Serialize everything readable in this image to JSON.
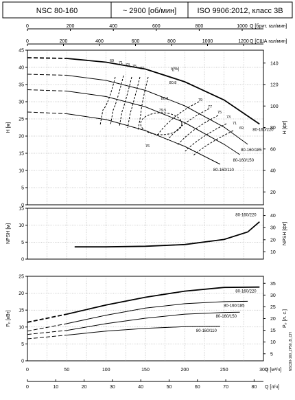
{
  "header": {
    "model": "NSC 80-160",
    "speed": "~ 2900 [об/мин]",
    "standard": "ISO 9906:2012, класс 3B"
  },
  "top_axes": {
    "brit_label": "Q [брит. гал/мин]",
    "brit_ticks": [
      "0",
      "200",
      "400",
      "600",
      "800",
      "1000"
    ],
    "us_label": "Q [США гал/мин]",
    "us_ticks": [
      "0",
      "200",
      "400",
      "600",
      "800",
      "1000",
      "1200"
    ]
  },
  "bottom_axes": {
    "m3h_label": "Q [м³/ч]",
    "m3h_ticks": [
      "0",
      "50",
      "100",
      "150",
      "200",
      "250",
      "300"
    ],
    "ls_label": "Q [л/ч]",
    "ls_ticks": [
      "0",
      "10",
      "20",
      "30",
      "40",
      "50",
      "60",
      "70",
      "80"
    ]
  },
  "side_code": "NSC80-160_2P50_B_CH",
  "chart_data": [
    {
      "type": "line",
      "panel": "head",
      "ylabel": "H [м]",
      "ylabel_right": "H [фт]",
      "xlim": [
        0,
        300
      ],
      "ylim": [
        0,
        45
      ],
      "y_ticks": [
        "0",
        "5",
        "10",
        "15",
        "20",
        "25",
        "30",
        "35",
        "40",
        "45"
      ],
      "y_right_ticks": [
        "20",
        "40",
        "60",
        "80",
        "100",
        "120",
        "140"
      ],
      "series": [
        {
          "name": "80-160/220",
          "x": [
            0,
            50,
            100,
            150,
            200,
            250,
            295
          ],
          "y": [
            42.8,
            42.6,
            41.5,
            39.5,
            35.8,
            30.5,
            23.5
          ]
        },
        {
          "name": "80-160/185",
          "x": [
            0,
            50,
            100,
            150,
            200,
            250,
            280
          ],
          "y": [
            38.0,
            37.7,
            36.2,
            33.3,
            28.8,
            22.6,
            17.6
          ]
        },
        {
          "name": "80-160/150",
          "x": [
            0,
            50,
            100,
            150,
            200,
            250,
            270
          ],
          "y": [
            33.5,
            33.1,
            31.5,
            28.5,
            23.9,
            17.6,
            14.6
          ]
        },
        {
          "name": "80-160/110",
          "x": [
            0,
            50,
            100,
            150,
            200,
            245
          ],
          "y": [
            27.0,
            26.5,
            24.8,
            21.6,
            17.0,
            11.8
          ]
        }
      ],
      "efficiency_labels": [
        "69",
        "71",
        "73",
        "75",
        "77",
        "80.3",
        "79.5",
        "80.8",
        "79",
        "77",
        "75",
        "73",
        "71",
        "69",
        "76"
      ],
      "efficiency_symbol": "η[%]"
    },
    {
      "type": "line",
      "panel": "npsh",
      "ylabel": "NPSH [м]",
      "ylabel_right": "NPSH [фт]",
      "xlim": [
        0,
        300
      ],
      "ylim": [
        0,
        15
      ],
      "y_ticks": [
        "0",
        "5",
        "10",
        "15"
      ],
      "y_right_ticks": [
        "10",
        "20",
        "30",
        "40"
      ],
      "series": [
        {
          "name": "80-160/220",
          "x": [
            60,
            100,
            150,
            200,
            250,
            280,
            295
          ],
          "y": [
            3.6,
            3.6,
            3.8,
            4.3,
            5.8,
            8.0,
            11.0
          ]
        }
      ]
    },
    {
      "type": "line",
      "panel": "power",
      "ylabel": "Pₚ [кВт]",
      "ylabel_right": "Pₚ [л. с.]",
      "xlim": [
        0,
        300
      ],
      "ylim": [
        0,
        25
      ],
      "y_ticks": [
        "0",
        "5",
        "10",
        "15",
        "20",
        "25"
      ],
      "y_right_ticks": [
        "5",
        "10",
        "15",
        "20",
        "25",
        "30",
        "35"
      ],
      "series": [
        {
          "name": "80-160/220",
          "x": [
            0,
            50,
            100,
            150,
            200,
            250,
            295
          ],
          "y": [
            11.4,
            13.8,
            16.5,
            18.8,
            20.6,
            21.7,
            21.8
          ]
        },
        {
          "name": "80-160/185",
          "x": [
            0,
            50,
            100,
            150,
            200,
            250,
            280
          ],
          "y": [
            8.8,
            11.0,
            13.5,
            15.6,
            16.9,
            17.5,
            17.6
          ]
        },
        {
          "name": "80-160/150",
          "x": [
            0,
            50,
            100,
            150,
            200,
            250,
            270
          ],
          "y": [
            7.8,
            9.0,
            11.0,
            12.6,
            13.8,
            14.3,
            14.4
          ]
        },
        {
          "name": "80-160/110",
          "x": [
            0,
            50,
            100,
            150,
            200,
            245
          ],
          "y": [
            6.5,
            7.6,
            8.8,
            9.6,
            10.1,
            10.2
          ]
        }
      ]
    }
  ]
}
